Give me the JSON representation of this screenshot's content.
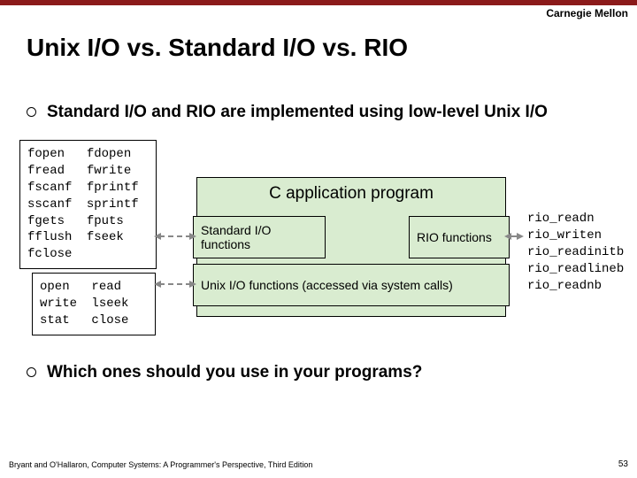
{
  "colors": {
    "top_bar": "#8b1a1a",
    "box_fill": "#d9ecd0",
    "arrow": "#888888",
    "text": "#000000"
  },
  "header": {
    "brand": "Carnegie Mellon"
  },
  "title": "Unix I/O vs. Standard I/O vs. RIO",
  "bullets": {
    "b1": "Standard I/O and RIO are implemented using low-level Unix I/O",
    "b2": "Which ones should you use in your programs?"
  },
  "stdio": {
    "col1": [
      "fopen",
      "fread",
      "fscanf",
      "sscanf",
      "fgets",
      "fflush",
      "fclose"
    ],
    "col2": [
      "fdopen",
      "fwrite",
      "fprintf",
      "sprintf",
      "fputs",
      "fseek"
    ]
  },
  "unixio": {
    "col1": [
      "open",
      "write",
      "stat"
    ],
    "col2": [
      "read",
      "lseek",
      "close"
    ]
  },
  "rio": {
    "items": [
      "rio_readn",
      "rio_writen",
      "rio_readinitb",
      "rio_readlineb",
      "rio_readnb"
    ]
  },
  "diagram": {
    "app_label": "C application program",
    "stdio_label": "Standard I/O functions",
    "rio_label": "RIO functions",
    "unix_label": "Unix I/O functions (accessed via system calls)"
  },
  "footer": {
    "citation": "Bryant and O'Hallaron, Computer Systems: A Programmer's Perspective, Third Edition",
    "page": "53"
  }
}
